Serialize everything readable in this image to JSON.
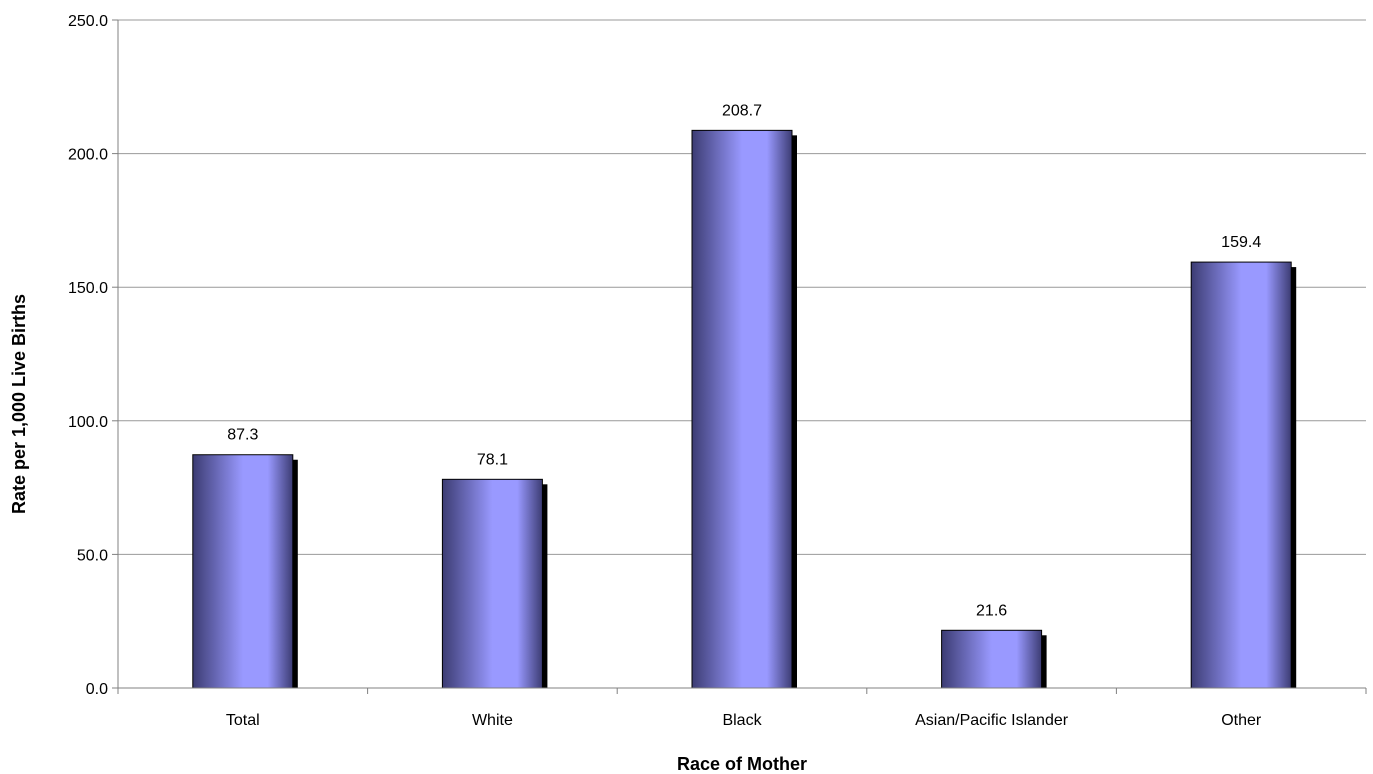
{
  "chart_data": {
    "type": "bar",
    "title": "",
    "xlabel": "Race of Mother",
    "ylabel": "Rate per 1,000 Live Births",
    "categories": [
      "Total",
      "White",
      "Black",
      "Asian/Pacific Islander",
      "Other"
    ],
    "values": [
      87.3,
      78.1,
      208.7,
      21.6,
      159.4
    ],
    "value_labels": [
      "87.3",
      "78.1",
      "208.7",
      "21.6",
      "159.4"
    ],
    "ylim": [
      0,
      250
    ],
    "yticks": [
      0,
      50,
      100,
      150,
      200,
      250
    ],
    "ytick_labels": [
      "0.0",
      "50.0",
      "100.0",
      "150.0",
      "200.0",
      "250.0"
    ],
    "grid": true,
    "legend": "none",
    "colors": {
      "bar_center": "#9999ff",
      "bar_edge": "#3c3c73",
      "shadow": "#000000",
      "gridline": "#999999",
      "axis": "#808080"
    }
  }
}
